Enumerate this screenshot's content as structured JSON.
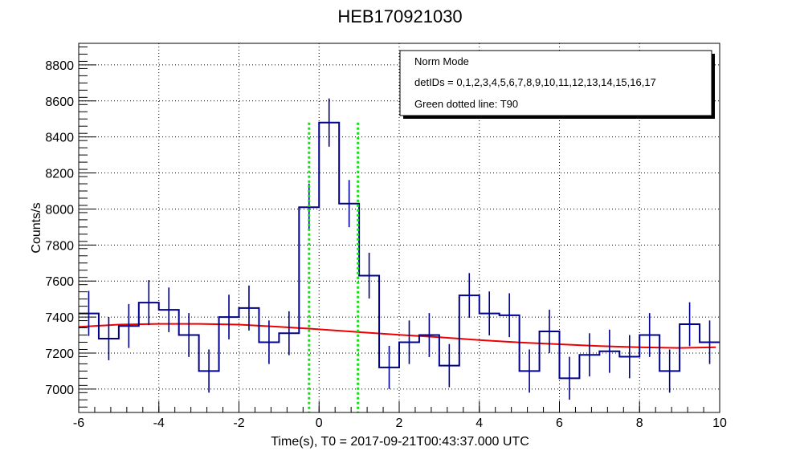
{
  "chart_data": {
    "type": "line",
    "title": "HEB170921030",
    "xlabel": "Time(s), T0 = 2017-09-21T00:43:37.000 UTC",
    "ylabel": "Counts/s",
    "xlim": [
      -6,
      10
    ],
    "ylim": [
      6870,
      8920
    ],
    "xticks": [
      "-6",
      "-4",
      "-2",
      "0",
      "2",
      "4",
      "6",
      "8",
      "10"
    ],
    "yticks": [
      "7000",
      "7200",
      "7400",
      "7600",
      "7800",
      "8000",
      "8200",
      "8400",
      "8600",
      "8800"
    ],
    "grid": true,
    "legend_position": "top-right",
    "legend": [
      "Norm Mode",
      "detIDs = 0,1,2,3,4,5,6,7,8,9,10,11,12,13,14,15,16,17",
      "Green dotted line: T90"
    ],
    "histogram": {
      "bin_width": 0.5,
      "x_start": -6,
      "values": [
        7420,
        7280,
        7350,
        7480,
        7440,
        7300,
        7100,
        7400,
        7450,
        7260,
        7310,
        8010,
        8480,
        8030,
        7630,
        7120,
        7260,
        7300,
        7130,
        7520,
        7420,
        7410,
        7100,
        7320,
        7060,
        7190,
        7210,
        7180,
        7300,
        7100,
        7360,
        7260
      ],
      "errors": [
        125,
        120,
        122,
        125,
        124,
        122,
        120,
        124,
        125,
        121,
        122,
        131,
        134,
        131,
        127,
        120,
        121,
        122,
        120,
        124,
        122,
        122,
        120,
        121,
        119,
        120,
        120,
        120,
        122,
        120,
        122,
        121
      ],
      "color": "#00008b"
    },
    "background_fit": {
      "x": [
        -6,
        -5,
        -4,
        -3,
        -2,
        -1,
        0,
        1,
        2,
        3,
        4,
        5,
        6,
        7,
        8,
        9,
        9.9
      ],
      "y": [
        7345,
        7358,
        7362,
        7362,
        7358,
        7346,
        7332,
        7316,
        7301,
        7288,
        7272,
        7259,
        7249,
        7239,
        7232,
        7228,
        7232
      ],
      "color": "#ee0000"
    },
    "t90_lines": {
      "x": [
        -0.25,
        0.97
      ],
      "y_top": 8480,
      "color": "#00ee00"
    }
  }
}
